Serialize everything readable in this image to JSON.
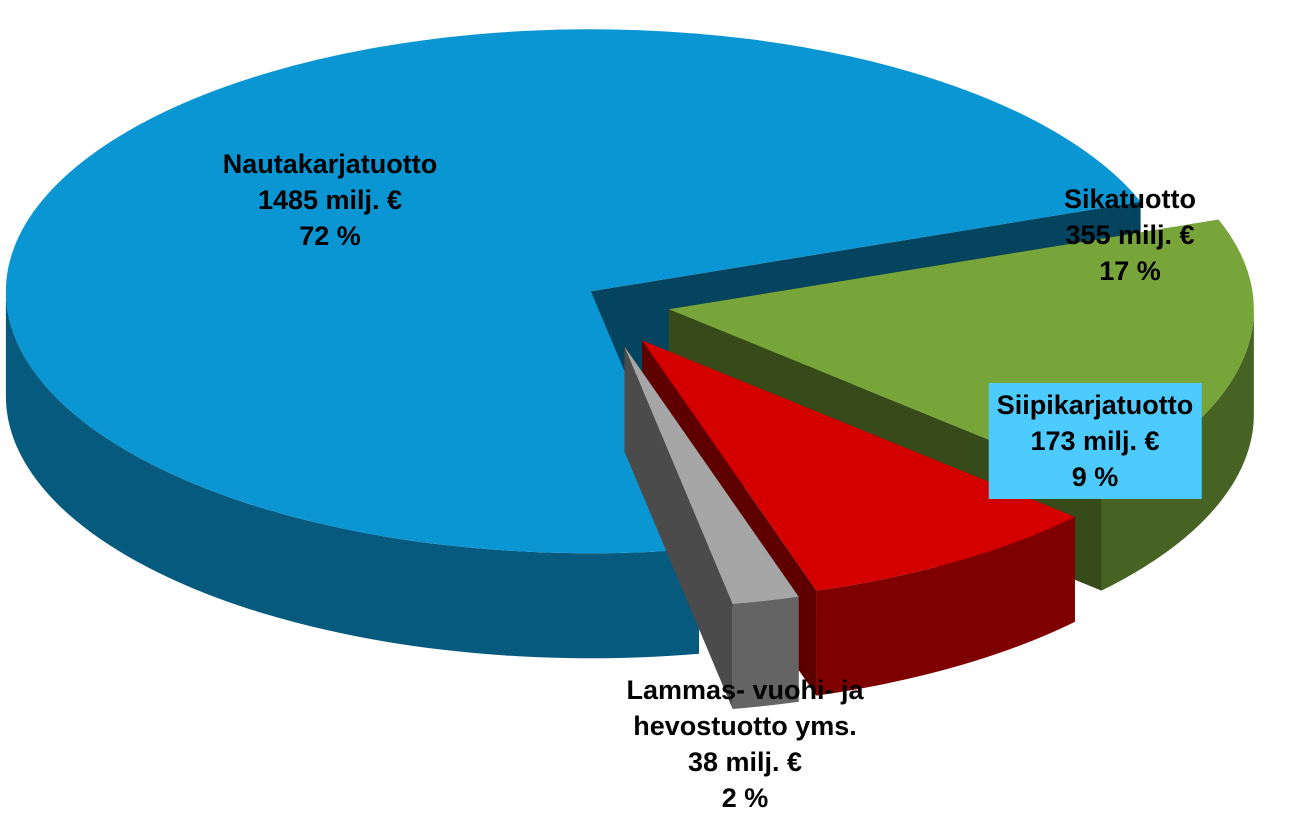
{
  "chart_data": {
    "type": "pie3d",
    "categories": [
      "Nautakarjatuotto",
      "Sikatuotto",
      "Siipikarjatuotto",
      "Lammas- vuohi- ja hevostuotto yms."
    ],
    "values": [
      1485,
      355,
      173,
      38
    ],
    "value_labels": [
      "1485 milj. €",
      "355 milj. €",
      "173 milj. €",
      "38 milj. €"
    ],
    "percents": [
      72,
      17,
      9,
      2
    ],
    "percent_labels": [
      "72 %",
      "17 %",
      "9 %",
      "2 %"
    ],
    "colors": [
      "#0a96d2",
      "#77a53a",
      "#d40000",
      "#a6a6a6"
    ]
  }
}
